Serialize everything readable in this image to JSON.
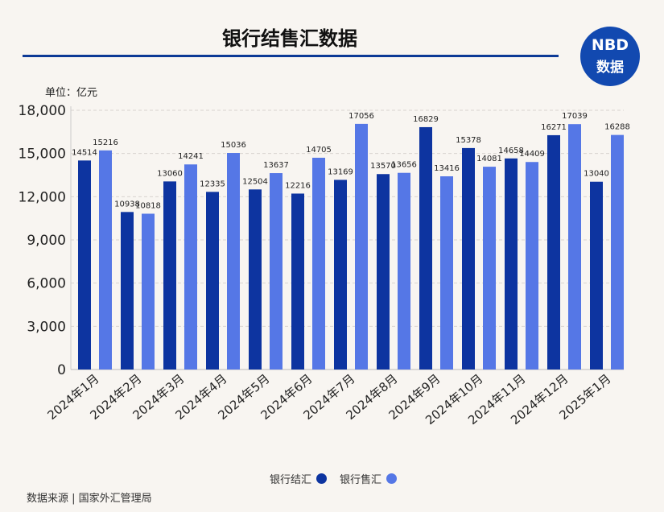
{
  "chart_data": {
    "type": "bar",
    "title": "银行结售汇数据",
    "unit": "单位：亿元",
    "categories": [
      "2024年1月",
      "2024年2月",
      "2024年3月",
      "2024年4月",
      "2024年5月",
      "2024年6月",
      "2024年7月",
      "2024年8月",
      "2024年9月",
      "2024年10月",
      "2024年11月",
      "2024年12月",
      "2025年1月"
    ],
    "series": [
      {
        "name": "银行结汇",
        "color": "#0d34a0",
        "values": [
          14514,
          10938,
          13060,
          12335,
          12504,
          12216,
          13169,
          13570,
          16829,
          15378,
          14658,
          16271,
          13040
        ]
      },
      {
        "name": "银行售汇",
        "color": "#5577e6",
        "values": [
          15216,
          10818,
          14241,
          15036,
          13637,
          14705,
          17056,
          13656,
          13416,
          14081,
          14409,
          17039,
          16288
        ]
      }
    ],
    "ylim": [
      0,
      18000
    ],
    "yticks": [
      "0",
      "3,000",
      "6,000",
      "9,000",
      "12,000",
      "15,000",
      "18,000"
    ],
    "grid": true,
    "legend": "bottom"
  },
  "logo": {
    "top": "NBD",
    "bottom": "数据"
  },
  "source": "数据来源 | 国家外汇管理局"
}
